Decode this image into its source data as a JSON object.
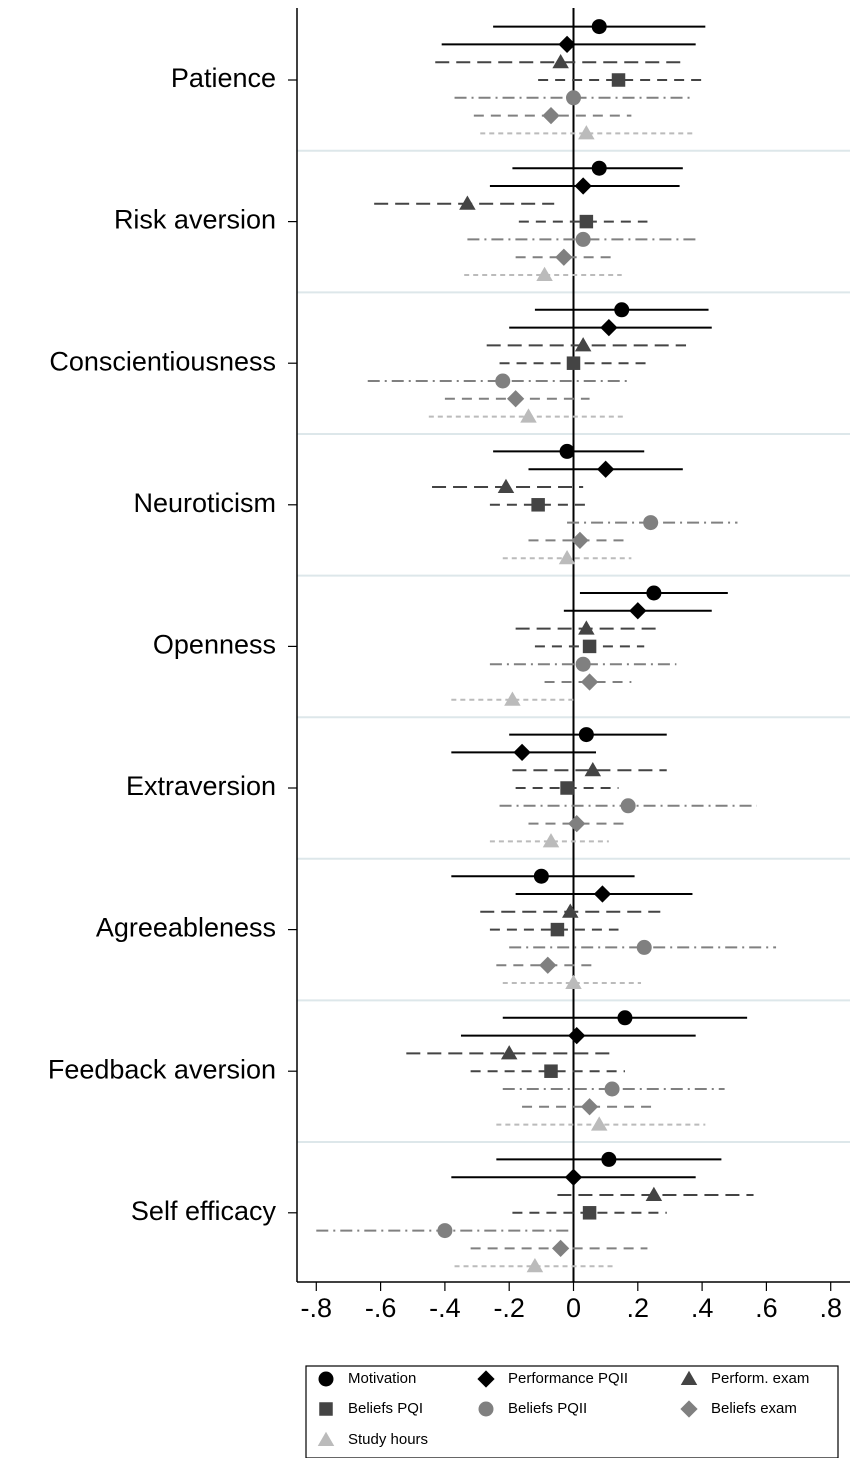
{
  "chart_data": {
    "type": "coefplot",
    "categories": [
      "Patience",
      "Risk aversion",
      "Conscientiousness",
      "Neuroticism",
      "Openness",
      "Extraversion",
      "Agreeableness",
      "Feedback aversion",
      "Self efficacy"
    ],
    "xlim": [
      -0.86,
      0.86
    ],
    "xticks": [
      {
        "value": -0.8,
        "label": "-.8"
      },
      {
        "value": -0.6,
        "label": "-.6"
      },
      {
        "value": -0.4,
        "label": "-.4"
      },
      {
        "value": -0.2,
        "label": "-.2"
      },
      0,
      {
        "value": 0.2,
        "label": ".2"
      },
      {
        "value": 0.4,
        "label": ".4"
      },
      {
        "value": 0.6,
        "label": ".6"
      },
      {
        "value": 0.8,
        "label": ".8"
      }
    ],
    "series": [
      {
        "name": "Motivation",
        "color": "#000000",
        "marker": "circle",
        "line_style": "solid",
        "values": [
          0.08,
          0.08,
          0.15,
          -0.02,
          0.25,
          0.04,
          -0.1,
          0.16,
          0.11
        ],
        "lower": [
          -0.25,
          -0.19,
          -0.12,
          -0.25,
          0.02,
          -0.2,
          -0.38,
          -0.22,
          -0.24
        ],
        "upper": [
          0.41,
          0.34,
          0.42,
          0.22,
          0.48,
          0.29,
          0.19,
          0.54,
          0.46
        ]
      },
      {
        "name": "Performance PQII",
        "color": "#000000",
        "marker": "diamond",
        "line_style": "solid",
        "values": [
          -0.02,
          0.03,
          0.11,
          0.1,
          0.2,
          -0.16,
          0.09,
          0.01,
          0
        ],
        "lower": [
          -0.41,
          -0.26,
          -0.2,
          -0.14,
          -0.03,
          -0.38,
          -0.18,
          -0.35,
          -0.38
        ],
        "upper": [
          0.38,
          0.33,
          0.43,
          0.34,
          0.43,
          0.07,
          0.37,
          0.38,
          0.38
        ]
      },
      {
        "name": "Perform. exam",
        "color": "#444444",
        "marker": "triangle",
        "line_style": "longdash",
        "values": [
          -0.04,
          -0.33,
          0.03,
          -0.21,
          0.04,
          0.06,
          -0.01,
          -0.2,
          0.25
        ],
        "lower": [
          -0.43,
          -0.62,
          -0.27,
          -0.44,
          -0.18,
          -0.19,
          -0.29,
          -0.52,
          -0.05
        ],
        "upper": [
          0.35,
          -0.06,
          0.35,
          0.03,
          0.27,
          0.29,
          0.27,
          0.12,
          0.56
        ]
      },
      {
        "name": "Beliefs PQI",
        "color": "#444444",
        "marker": "square",
        "line_style": "dash",
        "values": [
          0.14,
          0.04,
          0,
          -0.11,
          0.05,
          -0.02,
          -0.05,
          -0.07,
          0.05
        ],
        "lower": [
          -0.11,
          -0.17,
          -0.23,
          -0.26,
          -0.12,
          -0.18,
          -0.26,
          -0.32,
          -0.19
        ],
        "upper": [
          0.41,
          0.23,
          0.23,
          0.05,
          0.22,
          0.14,
          0.14,
          0.16,
          0.29
        ]
      },
      {
        "name": "Beliefs PQII",
        "color": "#808080",
        "marker": "circle",
        "line_style": "dashdot",
        "values": [
          0,
          0.03,
          -0.22,
          0.24,
          0.03,
          0.17,
          0.22,
          0.12,
          -0.4
        ],
        "lower": [
          -0.37,
          -0.33,
          -0.64,
          -0.02,
          -0.26,
          -0.23,
          -0.2,
          -0.22,
          -0.8
        ],
        "upper": [
          0.37,
          0.38,
          0.18,
          0.51,
          0.32,
          0.57,
          0.63,
          0.47,
          -0.01
        ]
      },
      {
        "name": "Beliefs exam",
        "color": "#808080",
        "marker": "diamond",
        "line_style": "dash",
        "values": [
          -0.07,
          -0.03,
          -0.18,
          0.02,
          0.05,
          0.01,
          -0.08,
          0.05,
          -0.04
        ],
        "lower": [
          -0.31,
          -0.18,
          -0.4,
          -0.14,
          -0.09,
          -0.14,
          -0.24,
          -0.16,
          -0.32
        ],
        "upper": [
          0.18,
          0.12,
          0.05,
          0.17,
          0.18,
          0.16,
          0.07,
          0.25,
          0.23
        ]
      },
      {
        "name": "Study hours",
        "color": "#bbbbbb",
        "marker": "triangle",
        "line_style": "shortdash",
        "values": [
          0.04,
          -0.09,
          -0.14,
          -0.02,
          -0.19,
          -0.07,
          0,
          0.08,
          -0.12
        ],
        "lower": [
          -0.29,
          -0.34,
          -0.45,
          -0.22,
          -0.38,
          -0.26,
          -0.22,
          -0.24,
          -0.37
        ],
        "upper": [
          0.37,
          0.15,
          0.16,
          0.18,
          0.01,
          0.11,
          0.21,
          0.41,
          0.13
        ]
      }
    ]
  }
}
